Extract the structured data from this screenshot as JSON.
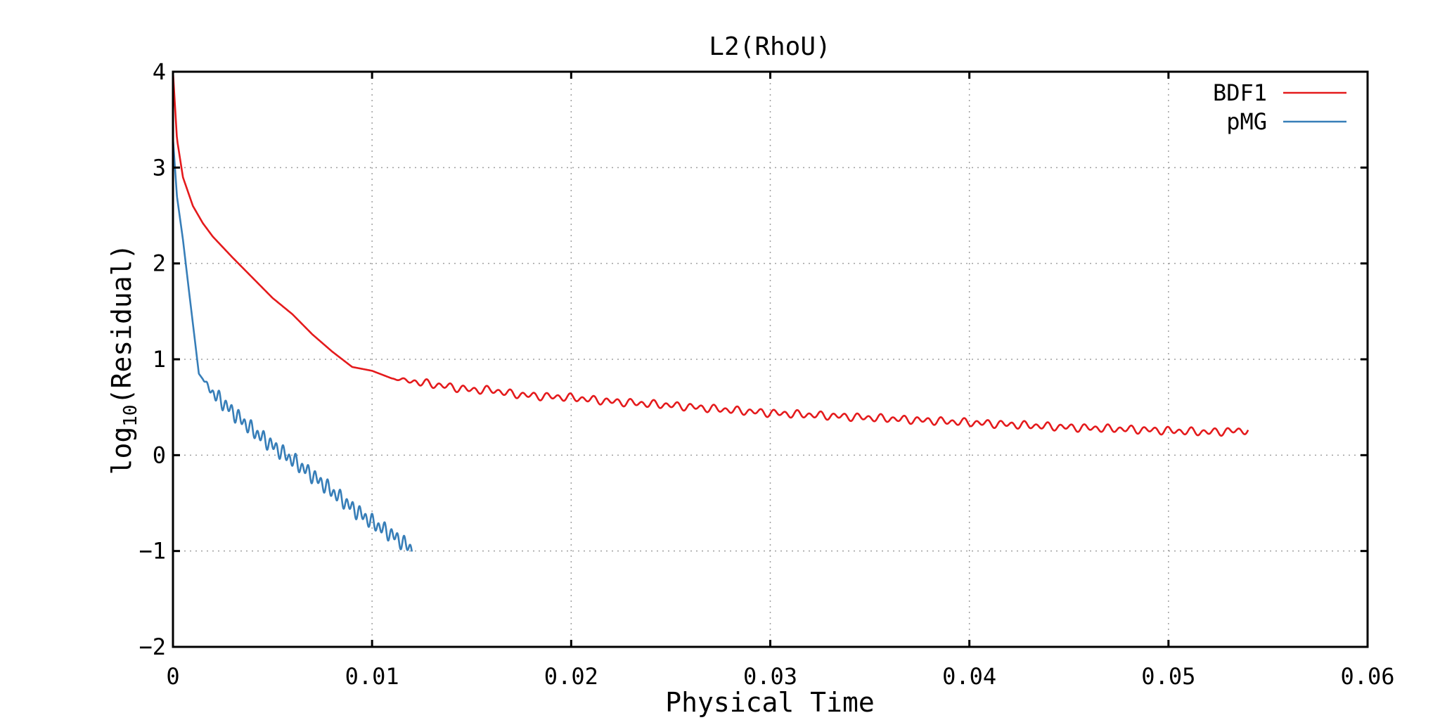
{
  "chart_data": {
    "type": "line",
    "title": "L2(RhoU)",
    "xlabel": "Physical Time",
    "ylabel_main": "log",
    "ylabel_sub": "10",
    "ylabel_tail": "(Residual)",
    "xlim": [
      0,
      0.06
    ],
    "ylim": [
      -2,
      4
    ],
    "x_ticks": [
      0,
      0.01,
      0.02,
      0.03,
      0.04,
      0.05,
      0.06
    ],
    "x_tick_labels": [
      "0",
      "0.01",
      "0.02",
      "0.03",
      "0.04",
      "0.05",
      "0.06"
    ],
    "y_ticks": [
      -2,
      -1,
      0,
      1,
      2,
      3,
      4
    ],
    "y_tick_labels": [
      "−2",
      "−1",
      "0",
      "1",
      "2",
      "3",
      "4"
    ],
    "grid": true,
    "legend_position": "top-right",
    "series": [
      {
        "name": "BDF1",
        "color": "#e41a1c",
        "keypoints": [
          [
            0,
            4.0
          ],
          [
            0.0002,
            3.3
          ],
          [
            0.0005,
            2.9
          ],
          [
            0.001,
            2.6
          ],
          [
            0.0015,
            2.42
          ],
          [
            0.002,
            2.28
          ],
          [
            0.003,
            2.06
          ],
          [
            0.004,
            1.85
          ],
          [
            0.005,
            1.64
          ],
          [
            0.006,
            1.47
          ],
          [
            0.007,
            1.26
          ],
          [
            0.008,
            1.08
          ],
          [
            0.009,
            0.92
          ],
          [
            0.01,
            0.88
          ],
          [
            0.011,
            0.8
          ],
          [
            0.012,
            0.77
          ],
          [
            0.013,
            0.74
          ],
          [
            0.014,
            0.71
          ],
          [
            0.015,
            0.68
          ],
          [
            0.016,
            0.68
          ],
          [
            0.017,
            0.64
          ],
          [
            0.018,
            0.62
          ],
          [
            0.02,
            0.6
          ],
          [
            0.022,
            0.56
          ],
          [
            0.025,
            0.52
          ],
          [
            0.028,
            0.47
          ],
          [
            0.03,
            0.44
          ],
          [
            0.033,
            0.41
          ],
          [
            0.035,
            0.39
          ],
          [
            0.038,
            0.36
          ],
          [
            0.04,
            0.34
          ],
          [
            0.043,
            0.31
          ],
          [
            0.045,
            0.29
          ],
          [
            0.048,
            0.27
          ],
          [
            0.05,
            0.255
          ],
          [
            0.052,
            0.24
          ],
          [
            0.054,
            0.26
          ]
        ],
        "wiggle_from_x": 0.011,
        "wiggle_amplitude": 0.03,
        "wiggle_period": 0.0006
      },
      {
        "name": "pMG",
        "color": "#377eb8",
        "keypoints": [
          [
            0,
            3.3
          ],
          [
            0.0002,
            2.7
          ],
          [
            0.0005,
            2.25
          ],
          [
            0.0008,
            1.72
          ],
          [
            0.0011,
            1.2
          ],
          [
            0.0013,
            0.85
          ],
          [
            0.002,
            0.65
          ],
          [
            0.003,
            0.45
          ],
          [
            0.004,
            0.26
          ],
          [
            0.005,
            0.1
          ],
          [
            0.006,
            -0.05
          ],
          [
            0.007,
            -0.21
          ],
          [
            0.008,
            -0.38
          ],
          [
            0.009,
            -0.55
          ],
          [
            0.01,
            -0.7
          ],
          [
            0.011,
            -0.83
          ],
          [
            0.012,
            -0.98
          ]
        ],
        "wiggle_from_x": 0.0015,
        "wiggle_amplitude": 0.06,
        "wiggle_period": 0.00032
      }
    ]
  }
}
